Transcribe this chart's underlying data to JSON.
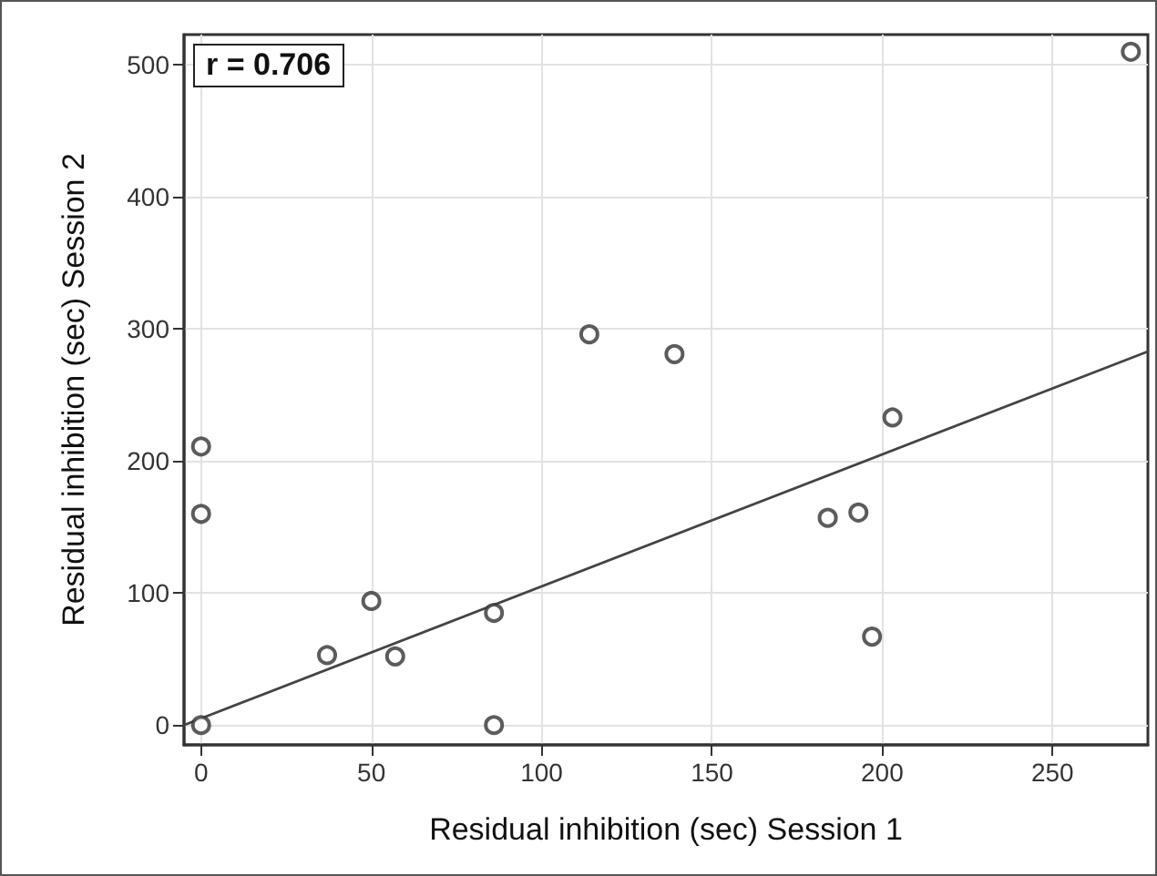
{
  "chart_data": {
    "type": "scatter",
    "xlabel": "Residual inhibition (sec) Session 1",
    "ylabel": "Residual inhibition (sec) Session 2",
    "annotations": [
      "r = 0.706"
    ],
    "series": [
      {
        "color": "#333333",
        "marker": "circle",
        "x": [
          0,
          0,
          0,
          37,
          50,
          57,
          86,
          86,
          114,
          139,
          184,
          193,
          197,
          203,
          273
        ],
        "values": [
          211,
          160,
          0,
          53,
          94,
          52,
          85,
          0,
          296,
          281,
          157,
          161,
          67,
          233,
          510
        ]
      },
      {
        "type": "line",
        "color": "#444444",
        "marker": "none",
        "line_style": "solid",
        "x": [
          -5,
          278
        ],
        "values": [
          0,
          283
        ]
      }
    ],
    "xlim": [
      -5,
      278
    ],
    "xticks": [
      0,
      50,
      100,
      150,
      200,
      250
    ],
    "ylim": [
      -15,
      523
    ],
    "yticks": [
      0,
      100,
      200,
      300,
      400,
      500
    ],
    "grid": true
  }
}
